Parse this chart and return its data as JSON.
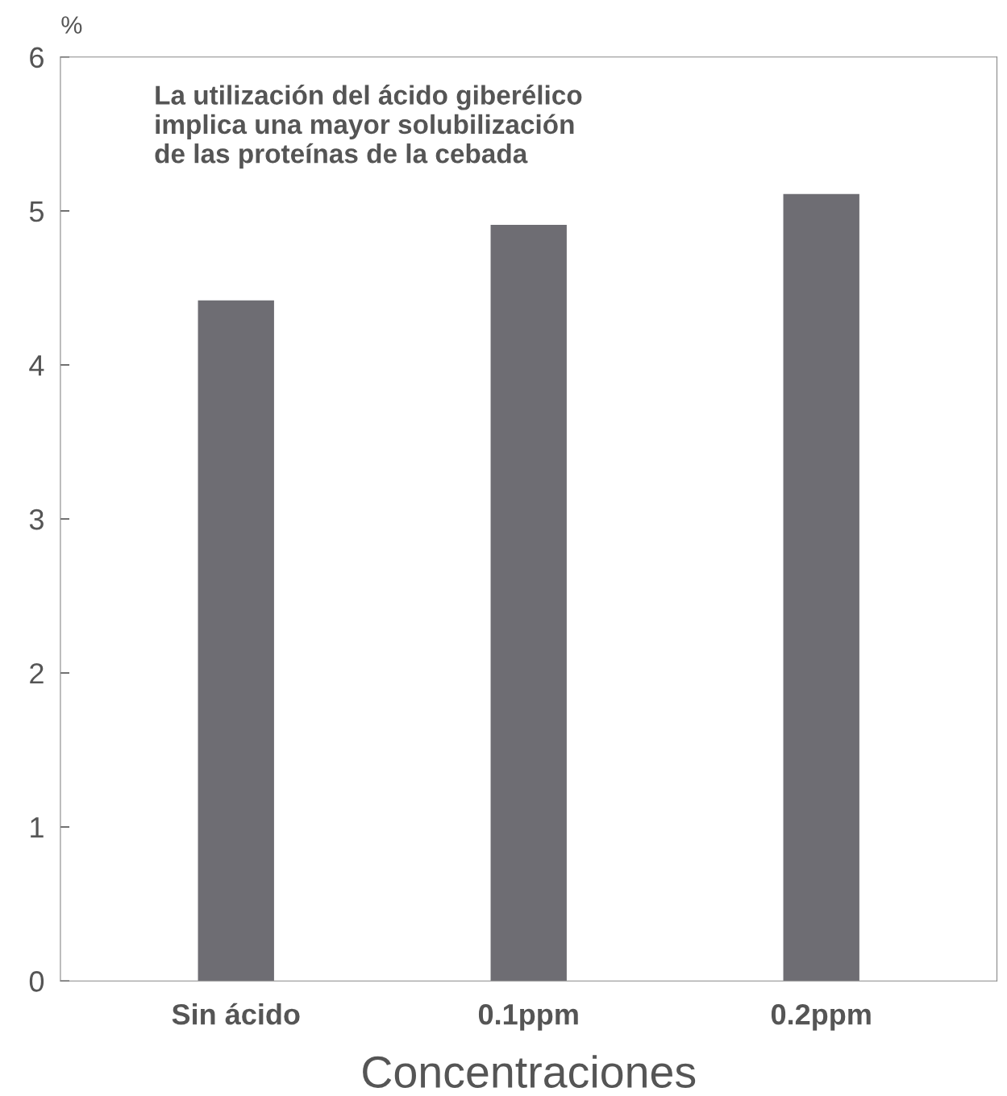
{
  "chart_data": {
    "type": "bar",
    "ylabel": "%",
    "xlabel": "Concentraciones",
    "categories": [
      "Sin ácido",
      "0.1ppm",
      "0.2ppm"
    ],
    "values": [
      4.42,
      4.91,
      5.11
    ],
    "color": "#6e6d73",
    "ylim": [
      0,
      6
    ],
    "yticks": [
      0,
      1,
      2,
      3,
      4,
      5,
      6
    ],
    "grid": false,
    "annotations": [
      "La utilización del ácido giberélico\nimplica una mayor solubilización\nde las proteínas de la cebada"
    ]
  }
}
